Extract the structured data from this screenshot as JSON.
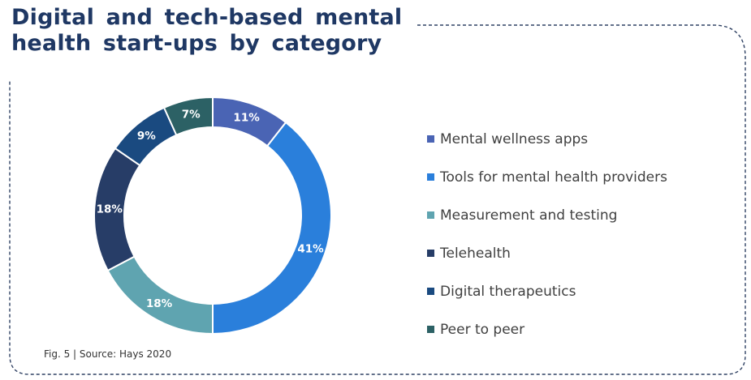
{
  "header": {
    "title_line1": "Digital and tech-based mental",
    "title_line2": "health start-ups by category"
  },
  "footer": {
    "source": "Fig. 5 | Source: Hays 2020"
  },
  "colors": {
    "frame": "#2f4163",
    "title": "#1f3864"
  },
  "chart_data": {
    "type": "pie",
    "variant": "donut",
    "title": "Digital and tech-based mental health start-ups by category",
    "unit": "%",
    "legend": "right",
    "categories": [
      "Mental wellness apps",
      "Tools for mental health providers",
      "Measurement and testing",
      "Telehealth",
      "Digital therapeutics",
      "Peer to peer"
    ],
    "values": [
      11,
      41,
      18,
      18,
      9,
      7
    ],
    "labels": [
      "11%",
      "41%",
      "18%",
      "18%",
      "9%",
      "7%"
    ],
    "colors": [
      "#4a64b4",
      "#2a7fdb",
      "#5fa4b0",
      "#273d67",
      "#1a4a80",
      "#2c6165"
    ]
  }
}
